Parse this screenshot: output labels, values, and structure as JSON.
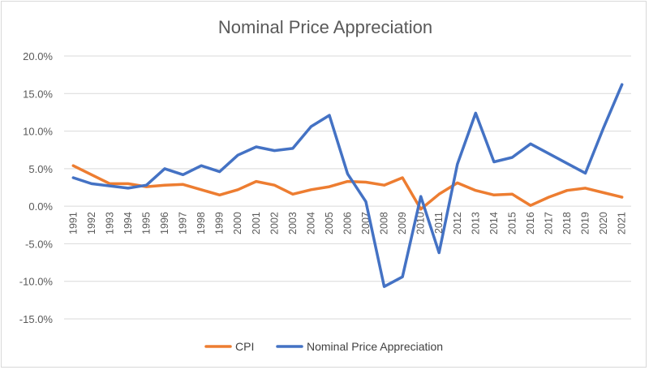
{
  "chart_data": {
    "type": "line",
    "title": "Nominal Price Appreciation",
    "xlabel": "",
    "ylabel": "",
    "ylim": [
      -0.15,
      0.2
    ],
    "yticks": [
      0.2,
      0.15,
      0.1,
      0.05,
      0.0,
      -0.05,
      -0.1,
      -0.15
    ],
    "ytick_labels": [
      "20.0%",
      "15.0%",
      "10.0%",
      "5.0%",
      "0.0%",
      "-5.0%",
      "-10.0%",
      "-15.0%"
    ],
    "grid": true,
    "legend_position": "bottom",
    "categories": [
      "1991",
      "1992",
      "1993",
      "1994",
      "1995",
      "1996",
      "1997",
      "1998",
      "1999",
      "2000",
      "2001",
      "2002",
      "2003",
      "2004",
      "2005",
      "2006",
      "2007",
      "2008",
      "2009",
      "2010",
      "2011",
      "2012",
      "2013",
      "2014",
      "2015",
      "2016",
      "2017",
      "2018",
      "2019",
      "2020",
      "2021"
    ],
    "series": [
      {
        "name": "CPI",
        "color": "#ED7D31",
        "values": [
          0.054,
          0.042,
          0.03,
          0.03,
          0.026,
          0.028,
          0.029,
          0.022,
          0.015,
          0.022,
          0.033,
          0.028,
          0.016,
          0.022,
          0.026,
          0.033,
          0.032,
          0.028,
          0.038,
          -0.004,
          0.016,
          0.031,
          0.021,
          0.015,
          0.016,
          0.001,
          0.012,
          0.021,
          0.024,
          0.018,
          0.012
        ]
      },
      {
        "name": "Nominal Price Appreciation",
        "color": "#4472C4",
        "values": [
          0.038,
          0.03,
          0.027,
          0.024,
          0.028,
          0.05,
          0.042,
          0.054,
          0.046,
          0.068,
          0.079,
          0.074,
          0.077,
          0.106,
          0.121,
          0.043,
          0.006,
          -0.107,
          -0.094,
          0.013,
          -0.062,
          0.056,
          0.124,
          0.059,
          0.065,
          0.083,
          0.07,
          0.057,
          0.044,
          0.105,
          0.162
        ]
      }
    ]
  }
}
